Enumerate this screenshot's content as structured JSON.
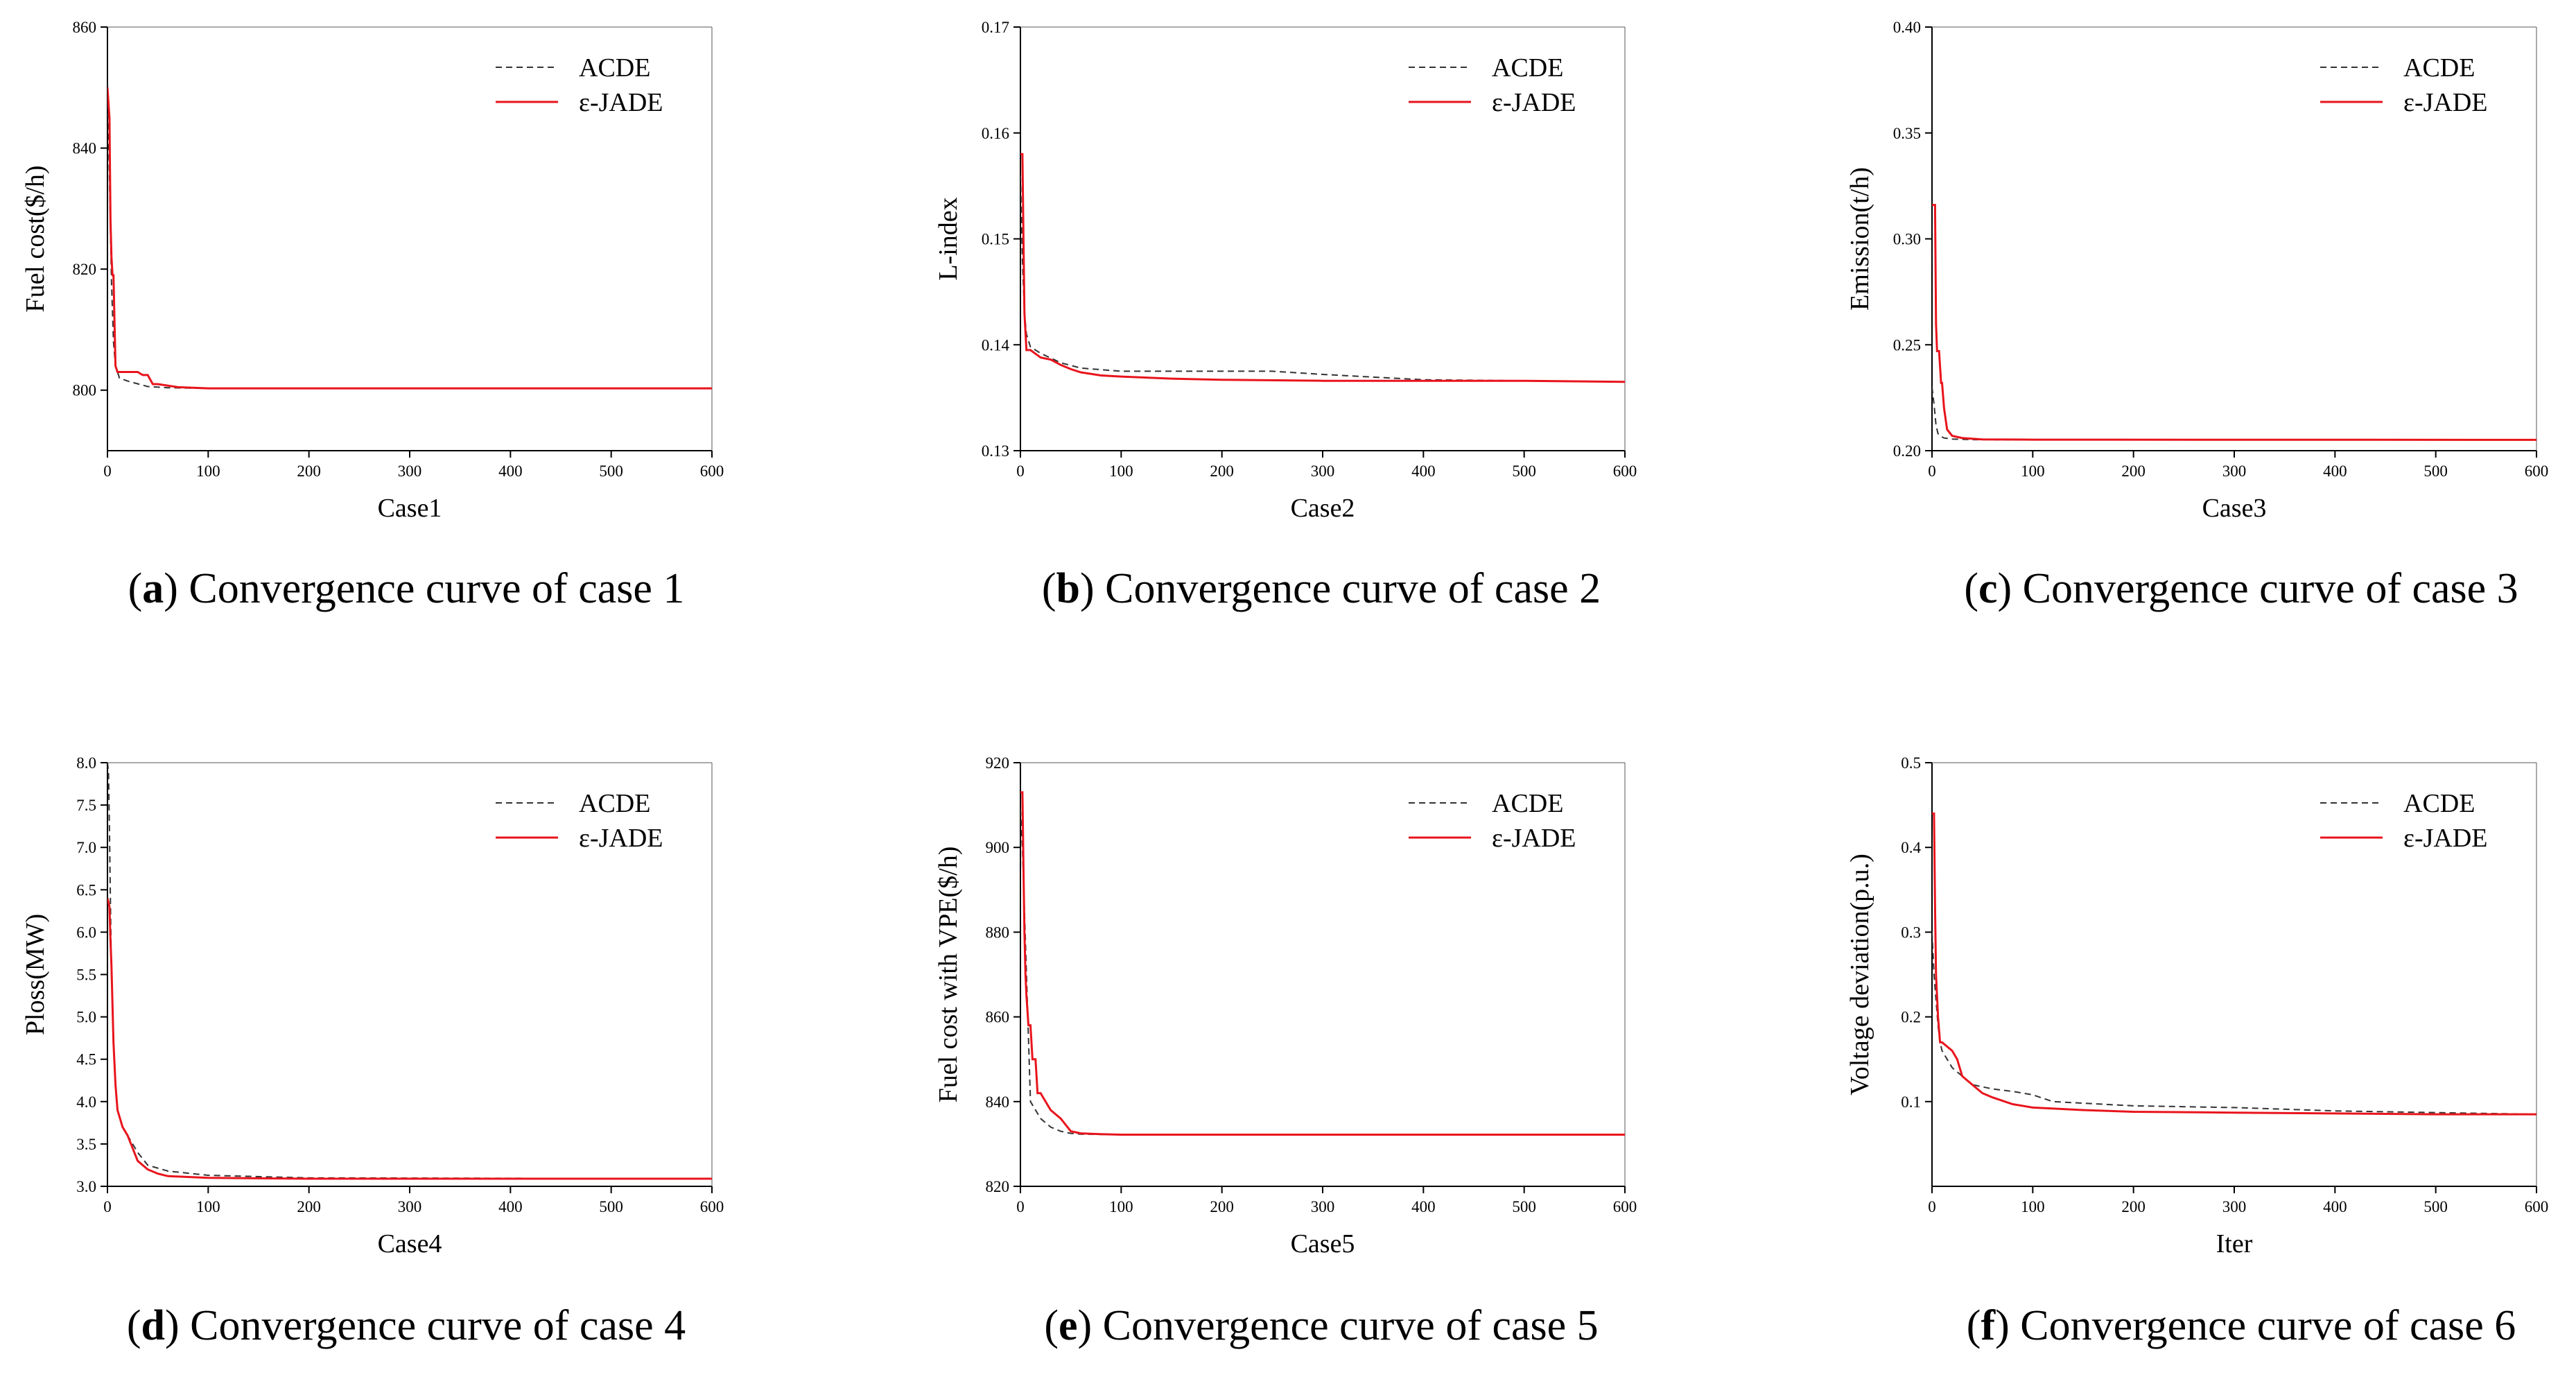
{
  "figure": {
    "colors": {
      "acde": "#333333",
      "ejade": "#e8141c",
      "axis": "#000000"
    }
  },
  "chart_data": [
    {
      "id": "a",
      "type": "line",
      "caption_letter": "a",
      "caption_text": "Convergence curve of case 1",
      "xlabel": "Case1",
      "ylabel": "Fuel cost($/h)",
      "xlim": [
        0,
        600
      ],
      "ylim": [
        790,
        860
      ],
      "xticks": [
        0,
        100,
        200,
        300,
        400,
        500,
        600
      ],
      "yticks": [
        800,
        820,
        840,
        860
      ],
      "legend_position": "top-right",
      "series": [
        {
          "name": "ACDE",
          "style": "dashed",
          "x": [
            0,
            2,
            4,
            6,
            8,
            12,
            20,
            40,
            60,
            100,
            600
          ],
          "y": [
            851,
            835,
            818,
            808,
            804,
            802,
            801.5,
            800.6,
            800.4,
            800.3,
            800.3
          ]
        },
        {
          "name": "ε-JADE",
          "style": "solid",
          "x": [
            0,
            2,
            3,
            4,
            5,
            6,
            8,
            10,
            30,
            35,
            40,
            45,
            50,
            70,
            100,
            600
          ],
          "y": [
            850,
            845,
            828,
            822,
            819,
            819,
            804,
            803,
            803,
            802.5,
            802.5,
            801,
            801,
            800.5,
            800.3,
            800.3
          ]
        }
      ]
    },
    {
      "id": "b",
      "type": "line",
      "caption_letter": "b",
      "caption_text": "Convergence curve of case 2",
      "xlabel": "Case2",
      "ylabel": "L-index",
      "xlim": [
        0,
        600
      ],
      "ylim": [
        0.13,
        0.17
      ],
      "xticks": [
        0,
        100,
        200,
        300,
        400,
        500,
        600
      ],
      "yticks": [
        0.13,
        0.14,
        0.15,
        0.16,
        0.17
      ],
      "legend_position": "top-right",
      "series": [
        {
          "name": "ACDE",
          "style": "dashed",
          "x": [
            0,
            2,
            4,
            6,
            10,
            20,
            40,
            60,
            100,
            200,
            250,
            300,
            400,
            500,
            600
          ],
          "y": [
            0.156,
            0.148,
            0.143,
            0.141,
            0.1398,
            0.1392,
            0.1383,
            0.1378,
            0.1375,
            0.1375,
            0.1375,
            0.1372,
            0.1367,
            0.1366,
            0.1365
          ]
        },
        {
          "name": "ε-JADE",
          "style": "solid",
          "x": [
            0,
            2,
            3,
            4,
            6,
            10,
            20,
            30,
            40,
            50,
            60,
            80,
            100,
            150,
            200,
            300,
            400,
            500,
            600
          ],
          "y": [
            0.158,
            0.158,
            0.15,
            0.143,
            0.1395,
            0.1395,
            0.1388,
            0.1386,
            0.1381,
            0.1377,
            0.1374,
            0.1371,
            0.137,
            0.1368,
            0.1367,
            0.1366,
            0.1366,
            0.1366,
            0.1365
          ]
        }
      ]
    },
    {
      "id": "c",
      "type": "line",
      "caption_letter": "c",
      "caption_text": "Convergence curve of case 3",
      "xlabel": "Case3",
      "ylabel": "Emission(t/h)",
      "xlim": [
        0,
        600
      ],
      "ylim": [
        0.2,
        0.4
      ],
      "xticks": [
        0,
        100,
        200,
        300,
        400,
        500,
        600
      ],
      "yticks": [
        0.2,
        0.25,
        0.3,
        0.35,
        0.4
      ],
      "legend_position": "top-right",
      "series": [
        {
          "name": "ACDE",
          "style": "dashed",
          "x": [
            0,
            2,
            4,
            6,
            8,
            12,
            20,
            40,
            100,
            600
          ],
          "y": [
            0.23,
            0.222,
            0.212,
            0.208,
            0.207,
            0.206,
            0.2055,
            0.2052,
            0.2051,
            0.2051
          ]
        },
        {
          "name": "ε-JADE",
          "style": "solid",
          "x": [
            0,
            3,
            4,
            5,
            7,
            9,
            10,
            12,
            15,
            20,
            30,
            50,
            100,
            600
          ],
          "y": [
            0.316,
            0.316,
            0.26,
            0.247,
            0.247,
            0.232,
            0.232,
            0.22,
            0.21,
            0.207,
            0.206,
            0.2053,
            0.2052,
            0.2051
          ]
        }
      ]
    },
    {
      "id": "d",
      "type": "line",
      "caption_letter": "d",
      "caption_text": "Convergence curve of case 4",
      "xlabel": "Case4",
      "ylabel": "Ploss(MW)",
      "xlim": [
        0,
        600
      ],
      "ylim": [
        3.0,
        8.0
      ],
      "xticks": [
        0,
        100,
        200,
        300,
        400,
        500,
        600
      ],
      "yticks": [
        3.0,
        3.5,
        4.0,
        4.5,
        5.0,
        5.5,
        6.0,
        6.5,
        7.0,
        7.5,
        8.0
      ],
      "legend_position": "top-right",
      "series": [
        {
          "name": "ACDE",
          "style": "dashed",
          "x": [
            0,
            1,
            2,
            3,
            4,
            6,
            8,
            10,
            15,
            20,
            30,
            40,
            60,
            100,
            200,
            600
          ],
          "y": [
            8.0,
            7.9,
            7.2,
            6.3,
            5.5,
            4.7,
            4.2,
            3.9,
            3.7,
            3.6,
            3.4,
            3.25,
            3.18,
            3.13,
            3.1,
            3.09
          ]
        },
        {
          "name": "ε-JADE",
          "style": "solid",
          "x": [
            0,
            2,
            3,
            4,
            6,
            8,
            10,
            15,
            20,
            30,
            40,
            50,
            60,
            100,
            200,
            600
          ],
          "y": [
            6.4,
            6.3,
            5.9,
            5.6,
            4.7,
            4.2,
            3.9,
            3.7,
            3.6,
            3.3,
            3.2,
            3.15,
            3.12,
            3.1,
            3.09,
            3.09
          ]
        }
      ]
    },
    {
      "id": "e",
      "type": "line",
      "caption_letter": "e",
      "caption_text": "Convergence curve of case 5",
      "xlabel": "Case5",
      "ylabel": "Fuel cost with VPE($/h)",
      "xlim": [
        0,
        600
      ],
      "ylim": [
        820,
        920
      ],
      "xticks": [
        0,
        100,
        200,
        300,
        400,
        500,
        600
      ],
      "yticks": [
        820,
        840,
        860,
        880,
        900,
        920
      ],
      "legend_position": "top-right",
      "series": [
        {
          "name": "ACDE",
          "style": "dashed",
          "x": [
            0,
            2,
            4,
            6,
            8,
            10,
            20,
            30,
            40,
            50,
            60,
            100,
            600
          ],
          "y": [
            909,
            900,
            885,
            870,
            855,
            840,
            836,
            834,
            833,
            832.5,
            832.3,
            832.2,
            832.2
          ]
        },
        {
          "name": "ε-JADE",
          "style": "solid",
          "x": [
            0,
            2,
            3,
            4,
            5,
            6,
            8,
            10,
            12,
            15,
            17,
            20,
            25,
            30,
            40,
            50,
            60,
            80,
            100,
            600
          ],
          "y": [
            913,
            913,
            895,
            880,
            870,
            865,
            858,
            858,
            850,
            850,
            842,
            842,
            840,
            838,
            836,
            833,
            832.5,
            832.3,
            832.2,
            832.2
          ]
        }
      ]
    },
    {
      "id": "f",
      "type": "line",
      "caption_letter": "f",
      "caption_text": "Convergence curve of case 6",
      "xlabel": "Iter",
      "ylabel": "Voltage deviation(p.u.)",
      "xlim": [
        0,
        600
      ],
      "ylim": [
        0.0,
        0.5
      ],
      "xticks": [
        0,
        100,
        200,
        300,
        400,
        500,
        600
      ],
      "yticks": [
        0.1,
        0.2,
        0.3,
        0.4,
        0.5
      ],
      "legend_position": "top-right",
      "series": [
        {
          "name": "ACDE",
          "style": "dashed",
          "x": [
            0,
            2,
            4,
            6,
            8,
            10,
            15,
            20,
            30,
            40,
            60,
            80,
            100,
            120,
            200,
            300,
            400,
            500,
            600
          ],
          "y": [
            0.3,
            0.25,
            0.22,
            0.19,
            0.17,
            0.16,
            0.15,
            0.14,
            0.13,
            0.12,
            0.115,
            0.112,
            0.108,
            0.1,
            0.095,
            0.093,
            0.089,
            0.087,
            0.085
          ]
        },
        {
          "name": "ε-JADE",
          "style": "solid",
          "x": [
            0,
            2,
            3,
            4,
            6,
            8,
            10,
            15,
            20,
            25,
            30,
            40,
            50,
            60,
            80,
            100,
            150,
            200,
            300,
            400,
            500,
            600
          ],
          "y": [
            0.44,
            0.44,
            0.33,
            0.25,
            0.2,
            0.17,
            0.17,
            0.165,
            0.16,
            0.15,
            0.13,
            0.12,
            0.11,
            0.105,
            0.097,
            0.093,
            0.09,
            0.088,
            0.087,
            0.086,
            0.085,
            0.085
          ]
        }
      ]
    }
  ]
}
